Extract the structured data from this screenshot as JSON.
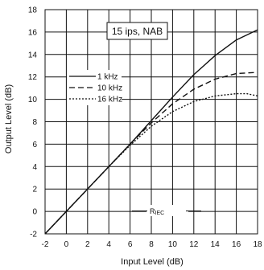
{
  "chart_data": {
    "type": "line",
    "title": "15 ips, NAB",
    "xlabel": "Input Level (dB)",
    "ylabel": "Output Level (dB)",
    "xlim": [
      -2,
      18
    ],
    "ylim": [
      -2,
      18
    ],
    "xticks": [
      -2,
      0,
      2,
      4,
      6,
      8,
      10,
      12,
      14,
      16,
      18
    ],
    "yticks": [
      -2,
      0,
      2,
      4,
      6,
      8,
      10,
      12,
      14,
      16,
      18
    ],
    "grid": true,
    "legend_position": "upper-left",
    "annotation": {
      "text": "R",
      "subscript": "IEC",
      "x": 9,
      "y": 0.3
    },
    "series": [
      {
        "name": "1 kHz",
        "style": "solid",
        "x": [
          -2,
          0,
          2,
          4,
          6,
          8,
          10,
          12,
          14,
          16,
          18
        ],
        "y": [
          -2,
          0,
          2,
          4,
          6,
          8.1,
          10.2,
          12.2,
          13.9,
          15.3,
          16.2
        ]
      },
      {
        "name": "10 kHz",
        "style": "dashed",
        "x": [
          -2,
          0,
          2,
          4,
          6,
          8,
          10,
          12,
          14,
          16,
          18
        ],
        "y": [
          -2,
          0,
          2,
          4,
          6,
          7.9,
          9.6,
          10.9,
          11.8,
          12.3,
          12.4
        ]
      },
      {
        "name": "16 kHz",
        "style": "dotted",
        "x": [
          -2,
          0,
          2,
          4,
          6,
          8,
          10,
          12,
          14,
          16,
          17,
          18
        ],
        "y": [
          -2,
          0,
          2,
          4,
          5.9,
          7.6,
          8.9,
          9.8,
          10.3,
          10.5,
          10.5,
          10.3
        ]
      }
    ]
  }
}
